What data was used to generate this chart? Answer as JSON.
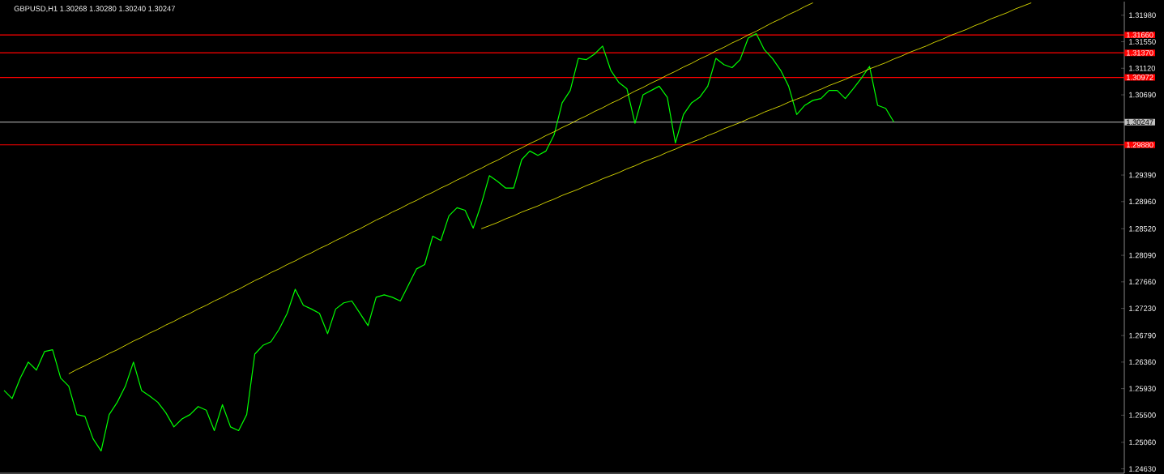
{
  "chart_data": {
    "type": "line",
    "title": "GBPUSD,H1  1.30268 1.30280 1.30240 1.30247",
    "categories": [
      null,
      null,
      null,
      null,
      null,
      null,
      null,
      null,
      null,
      null,
      null,
      null,
      null,
      null,
      null,
      null,
      null,
      null,
      null,
      null,
      null,
      null,
      null,
      null,
      null,
      null,
      null,
      null,
      null,
      null,
      null,
      null,
      null,
      null,
      null,
      null,
      null,
      null,
      null,
      null,
      null,
      null,
      null,
      null,
      null,
      null,
      null,
      null,
      null,
      null,
      null,
      null,
      null,
      null,
      null,
      null,
      null,
      null,
      null,
      null,
      null,
      null,
      null,
      null,
      null,
      null,
      null,
      null,
      null,
      null,
      null,
      null,
      null,
      null,
      null,
      null,
      null,
      null,
      null,
      null,
      null,
      null,
      null,
      null,
      null,
      null,
      null,
      null,
      null,
      null,
      null,
      null,
      null,
      null,
      null,
      null,
      null,
      null,
      null,
      null,
      null,
      null,
      null,
      null,
      null,
      null,
      null,
      null,
      null,
      null,
      null,
      null,
      null,
      null,
      null,
      null,
      null,
      null,
      null,
      null,
      null,
      null,
      null,
      null,
      null,
      null,
      null,
      null,
      null,
      null,
      null,
      null,
      null,
      null,
      null,
      null,
      null,
      null,
      null
    ],
    "ylim": [
      1.2456,
      1.322
    ],
    "tick_labels": "y",
    "marker": "none",
    "line_style": "solid",
    "yticks": [
      {
        "value": 1.3198,
        "label": "1.31980"
      },
      {
        "value": 1.3155,
        "label": "1.31550"
      },
      {
        "value": 1.3112,
        "label": "1.31120"
      },
      {
        "value": 1.3069,
        "label": "1.30690"
      },
      {
        "value": 1.2939,
        "label": "1.29390"
      },
      {
        "value": 1.2896,
        "label": "1.28960"
      },
      {
        "value": 1.2852,
        "label": "1.28520"
      },
      {
        "value": 1.2809,
        "label": "1.28090"
      },
      {
        "value": 1.2766,
        "label": "1.27660"
      },
      {
        "value": 1.2723,
        "label": "1.27230"
      },
      {
        "value": 1.2679,
        "label": "1.26790"
      },
      {
        "value": 1.2636,
        "label": "1.26360"
      },
      {
        "value": 1.2593,
        "label": "1.25930"
      },
      {
        "value": 1.255,
        "label": "1.25500"
      },
      {
        "value": 1.2506,
        "label": "1.25060"
      },
      {
        "value": 1.2463,
        "label": "1.24630"
      }
    ],
    "series": [
      {
        "color": "#00ff00",
        "values": [
          1.259,
          1.2577,
          1.261,
          1.2636,
          1.2623,
          1.2653,
          1.2656,
          1.261,
          1.2597,
          1.2551,
          1.2548,
          1.2512,
          1.2492,
          1.2551,
          1.2571,
          1.2597,
          1.2636,
          1.259,
          1.2581,
          1.2571,
          1.2554,
          1.2531,
          1.2544,
          1.2551,
          1.2564,
          1.2558,
          1.2525,
          1.2567,
          1.2531,
          1.2525,
          1.2551,
          1.2649,
          1.2663,
          1.2669,
          1.2689,
          1.2715,
          1.2754,
          1.2728,
          1.2722,
          1.2715,
          1.2682,
          1.2722,
          1.2732,
          1.2735,
          1.2715,
          1.2695,
          1.2741,
          1.2745,
          1.2741,
          1.2735,
          1.2761,
          1.2787,
          1.2794,
          1.284,
          1.2833,
          1.2873,
          1.2886,
          1.2882,
          1.2853,
          1.2892,
          1.2938,
          1.2929,
          1.2918,
          1.2918,
          1.2964,
          1.2978,
          1.2971,
          1.2978,
          1.3004,
          1.3056,
          1.3076,
          1.3128,
          1.3126,
          1.3135,
          1.3148,
          1.3109,
          1.3089,
          1.3079,
          1.3023,
          1.3069,
          1.3076,
          1.3083,
          1.3065,
          1.2991,
          1.3037,
          1.3056,
          1.3065,
          1.3083,
          1.3128,
          1.3118,
          1.3113,
          1.3126,
          1.3161,
          1.3168,
          1.3142,
          1.3128,
          1.3109,
          1.3083,
          1.3037,
          1.3052,
          1.306,
          1.3063,
          1.3076,
          1.3076,
          1.3063,
          1.3079,
          1.3096,
          1.3115,
          1.3052,
          1.3047,
          1.3025,
          null,
          null,
          null,
          null,
          null,
          null,
          null,
          null,
          null,
          null,
          null,
          null,
          null,
          null,
          null,
          null,
          null,
          null,
          null,
          null,
          null,
          null,
          null,
          null,
          null,
          null,
          null,
          null
        ]
      },
      {
        "type": "line",
        "color": "#ffff00",
        "values": [
          null,
          null,
          null,
          null,
          null,
          null,
          null,
          null,
          1.2617,
          1.2624,
          1.263,
          1.2637,
          1.2643,
          1.265,
          1.2656,
          1.2663,
          1.267,
          1.2676,
          1.2683,
          1.2689,
          1.2696,
          1.2702,
          1.2709,
          1.2715,
          1.2722,
          1.2728,
          1.2735,
          1.2741,
          1.2748,
          1.2754,
          1.2761,
          1.2768,
          1.2774,
          1.2781,
          1.2787,
          1.2794,
          1.28,
          1.2807,
          1.2813,
          1.282,
          1.2826,
          1.2833,
          1.2839,
          1.2846,
          1.2852,
          1.2859,
          1.2866,
          1.2872,
          1.2879,
          1.2885,
          1.2892,
          1.2898,
          1.2905,
          1.2911,
          1.2918,
          1.2924,
          1.2931,
          1.2937,
          1.2944,
          1.295,
          1.2957,
          1.2963,
          1.297,
          1.2977,
          1.2983,
          1.299,
          1.2996,
          1.3003,
          1.3009,
          1.3016,
          1.3022,
          1.3029,
          1.3035,
          1.3042,
          1.3048,
          1.3055,
          1.3061,
          1.3068,
          1.3075,
          1.3081,
          1.3088,
          1.3094,
          1.3101,
          1.3107,
          1.3114,
          1.312,
          1.3127,
          1.3133,
          1.314,
          1.3146,
          1.3153,
          1.3159,
          1.3166,
          1.3172,
          1.3179,
          1.3186,
          1.3192,
          1.3199,
          1.3205,
          1.3212,
          1.3218,
          null,
          null,
          null,
          null,
          null,
          null,
          null,
          null,
          null,
          null,
          null,
          null,
          null,
          null,
          null,
          null,
          null,
          null,
          null,
          null,
          null,
          null,
          null,
          null,
          null,
          null,
          null,
          null,
          null,
          null,
          null,
          null,
          null,
          null,
          null,
          null,
          null,
          null
        ]
      },
      {
        "type": "line",
        "color": "#ffff00",
        "values": [
          null,
          null,
          null,
          null,
          null,
          null,
          null,
          null,
          null,
          null,
          null,
          null,
          null,
          null,
          null,
          null,
          null,
          null,
          null,
          null,
          null,
          null,
          null,
          null,
          null,
          null,
          null,
          null,
          null,
          null,
          null,
          null,
          null,
          null,
          null,
          null,
          null,
          null,
          null,
          null,
          null,
          null,
          null,
          null,
          null,
          null,
          null,
          null,
          null,
          null,
          null,
          null,
          null,
          null,
          null,
          null,
          null,
          null,
          null,
          1.2852,
          1.2857,
          1.2862,
          1.2868,
          1.2873,
          1.2879,
          1.2884,
          1.2889,
          1.2895,
          1.29,
          1.2906,
          1.2911,
          1.2916,
          1.2922,
          1.2927,
          1.2933,
          1.2938,
          1.2943,
          1.2949,
          1.2954,
          1.296,
          1.2965,
          1.297,
          1.2976,
          1.2981,
          1.2987,
          1.2992,
          1.2997,
          1.3003,
          1.3008,
          1.3014,
          1.3019,
          1.3024,
          1.303,
          1.3035,
          1.3041,
          1.3046,
          1.3051,
          1.3057,
          1.3062,
          1.3067,
          1.3073,
          1.3078,
          1.3084,
          1.3089,
          1.3094,
          1.31,
          1.3105,
          1.3111,
          1.3116,
          1.3121,
          1.3127,
          1.3132,
          1.3138,
          1.3143,
          1.3148,
          1.3154,
          1.3159,
          1.3165,
          1.317,
          1.3175,
          1.3181,
          1.3186,
          1.3192,
          1.3197,
          1.3202,
          1.3208,
          1.3213,
          1.3218,
          null,
          null,
          null,
          null,
          null,
          null,
          null,
          null,
          null,
          null,
          null
        ]
      }
    ],
    "ref_lines": [
      {
        "axis": "y",
        "value": 1.3166,
        "label": "1.31660",
        "color": "#ff0000"
      },
      {
        "axis": "y",
        "value": 1.3137,
        "label": "1.31370",
        "color": "#ff0000"
      },
      {
        "axis": "y",
        "value": 1.30972,
        "label": "1.30972",
        "color": "#ff0000"
      },
      {
        "axis": "y",
        "value": 1.30247,
        "label": "1.30247",
        "color": "#c0c0c0"
      },
      {
        "axis": "y",
        "value": 1.2988,
        "label": "1.29880",
        "color": "#ff0000"
      }
    ]
  }
}
